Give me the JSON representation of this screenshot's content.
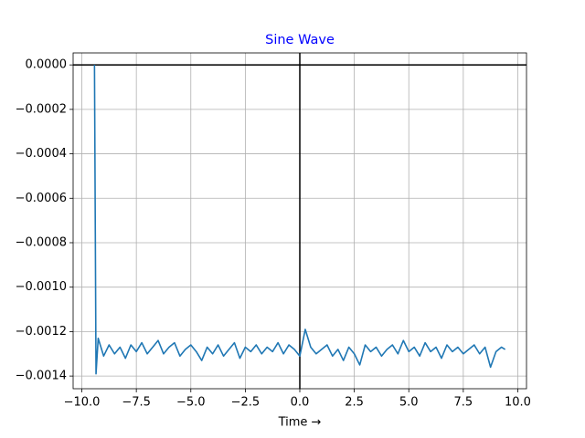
{
  "chart_data": {
    "type": "line",
    "title": "Sine Wave",
    "title_color": "#0000ff",
    "xlabel": "Time →",
    "x": [
      -9.42,
      -9.35,
      -9.25,
      -9.0,
      -8.75,
      -8.5,
      -8.25,
      -8.0,
      -7.75,
      -7.5,
      -7.25,
      -7.0,
      -6.75,
      -6.5,
      -6.25,
      -6.0,
      -5.75,
      -5.5,
      -5.25,
      -5.0,
      -4.75,
      -4.5,
      -4.25,
      -4.0,
      -3.75,
      -3.5,
      -3.25,
      -3.0,
      -2.75,
      -2.5,
      -2.25,
      -2.0,
      -1.75,
      -1.5,
      -1.25,
      -1.0,
      -0.75,
      -0.5,
      -0.25,
      0.0,
      0.25,
      0.5,
      0.75,
      1.0,
      1.25,
      1.5,
      1.75,
      2.0,
      2.25,
      2.5,
      2.75,
      3.0,
      3.25,
      3.5,
      3.75,
      4.0,
      4.25,
      4.5,
      4.75,
      5.0,
      5.25,
      5.5,
      5.75,
      6.0,
      6.25,
      6.5,
      6.75,
      7.0,
      7.25,
      7.5,
      7.75,
      8.0,
      8.25,
      8.5,
      8.75,
      9.0,
      9.25,
      9.42
    ],
    "series": [
      {
        "color": "#1f77b4",
        "values": [
          0,
          -0.00139,
          -0.00123,
          -0.00131,
          -0.00126,
          -0.0013,
          -0.00127,
          -0.00132,
          -0.00126,
          -0.00129,
          -0.00125,
          -0.0013,
          -0.00127,
          -0.00124,
          -0.0013,
          -0.00127,
          -0.00125,
          -0.00131,
          -0.00128,
          -0.00126,
          -0.00129,
          -0.00133,
          -0.00127,
          -0.0013,
          -0.00126,
          -0.00131,
          -0.00128,
          -0.00125,
          -0.00132,
          -0.00127,
          -0.00129,
          -0.00126,
          -0.0013,
          -0.00127,
          -0.00129,
          -0.00125,
          -0.0013,
          -0.00126,
          -0.00128,
          -0.00131,
          -0.00119,
          -0.00127,
          -0.0013,
          -0.00128,
          -0.00126,
          -0.00131,
          -0.00128,
          -0.00133,
          -0.00127,
          -0.0013,
          -0.00135,
          -0.00126,
          -0.00129,
          -0.00127,
          -0.00131,
          -0.00128,
          -0.00126,
          -0.0013,
          -0.00124,
          -0.00129,
          -0.00127,
          -0.00131,
          -0.00125,
          -0.00129,
          -0.00127,
          -0.00132,
          -0.00126,
          -0.00129,
          -0.00127,
          -0.0013,
          -0.00128,
          -0.00126,
          -0.0013,
          -0.00127,
          -0.00136,
          -0.00129,
          -0.00127,
          -0.00128
        ]
      }
    ],
    "xlim": [
      -10.4,
      10.4
    ],
    "ylim": [
      -0.001457,
      5.4e-05
    ],
    "xticks": [
      {
        "value": -10,
        "label": "−10.0"
      },
      {
        "value": -7.5,
        "label": "−7.5"
      },
      {
        "value": -5,
        "label": "−5.0"
      },
      {
        "value": -2.5,
        "label": "−2.5"
      },
      {
        "value": 0,
        "label": "0.0"
      },
      {
        "value": 2.5,
        "label": "2.5"
      },
      {
        "value": 5,
        "label": "5.0"
      },
      {
        "value": 7.5,
        "label": "7.5"
      },
      {
        "value": 10,
        "label": "10.0"
      }
    ],
    "yticks": [
      {
        "value": 0,
        "label": "0.0000"
      },
      {
        "value": -0.0002,
        "label": "−0.0002"
      },
      {
        "value": -0.0004,
        "label": "−0.0004"
      },
      {
        "value": -0.0006,
        "label": "−0.0006"
      },
      {
        "value": -0.0008,
        "label": "−0.0008"
      },
      {
        "value": -0.001,
        "label": "−0.0010"
      },
      {
        "value": -0.0012,
        "label": "−0.0012"
      },
      {
        "value": -0.0014,
        "label": "−0.0014"
      }
    ],
    "grid": true
  }
}
